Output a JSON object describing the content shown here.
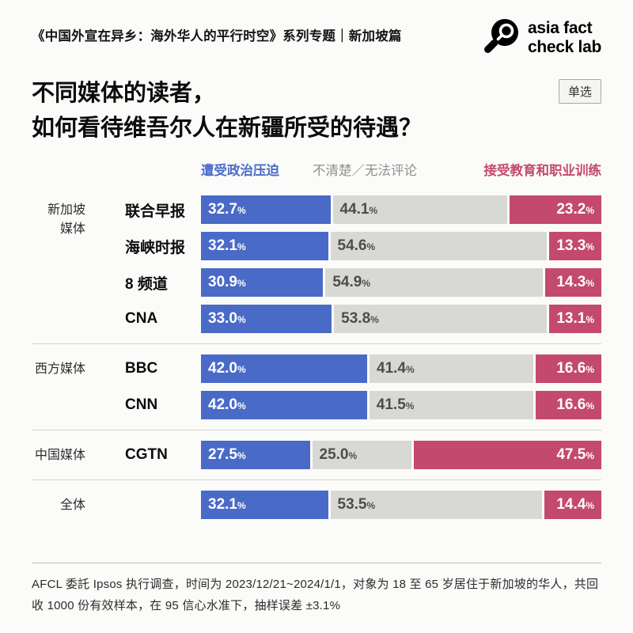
{
  "header": {
    "series_title": "《中国外宣在异乡：海外华人的平行时空》系列专题｜新加坡篇",
    "logo": {
      "line1": "asia fact",
      "line2": "check lab",
      "icon": "magnifier-icon"
    }
  },
  "title": {
    "line1": "不同媒体的读者，",
    "line2": "如何看待维吾尔人在新疆所受的待遇？"
  },
  "badge": "单选",
  "chart_data": {
    "type": "bar",
    "variant": "horizontal-stacked-100",
    "unit": "%",
    "legend_position": "top",
    "series": [
      {
        "name": "遭受政治压迫",
        "color": "#4a6ac8",
        "text_color": "#ffffff"
      },
      {
        "name": "不清楚／无法评论",
        "color": "#d8d8d5",
        "text_color": "#4d4d4d"
      },
      {
        "name": "接受教育和职业训练",
        "color": "#c4496f",
        "text_color": "#ffffff"
      }
    ],
    "groups": [
      {
        "label": "新加坡\n媒体",
        "rows": [
          {
            "media": "联合早报",
            "values": [
              "32.7",
              "44.1",
              "23.2"
            ]
          },
          {
            "media": "海峡时报",
            "values": [
              "32.1",
              "54.6",
              "13.3"
            ]
          },
          {
            "media": "8 频道",
            "values": [
              "30.9",
              "54.9",
              "14.3"
            ]
          },
          {
            "media": "CNA",
            "values": [
              "33.0",
              "53.8",
              "13.1"
            ]
          }
        ]
      },
      {
        "label": "西方媒体",
        "rows": [
          {
            "media": "BBC",
            "values": [
              "42.0",
              "41.4",
              "16.6"
            ]
          },
          {
            "media": "CNN",
            "values": [
              "42.0",
              "41.5",
              "16.6"
            ]
          }
        ]
      },
      {
        "label": "中国媒体",
        "rows": [
          {
            "media": "CGTN",
            "values": [
              "27.5",
              "25.0",
              "47.5"
            ]
          }
        ]
      },
      {
        "label": "全体",
        "rows": [
          {
            "media": "",
            "values": [
              "32.1",
              "53.5",
              "14.4"
            ]
          }
        ]
      }
    ]
  },
  "footer": "AFCL 委託 Ipsos 执行调查，时间为 2023/12/21~2024/1/1，对象为 18 至 65 岁居住于新加坡的华人，共回收 1000 份有效样本，在 95 信心水准下，抽样误差 ±3.1%"
}
